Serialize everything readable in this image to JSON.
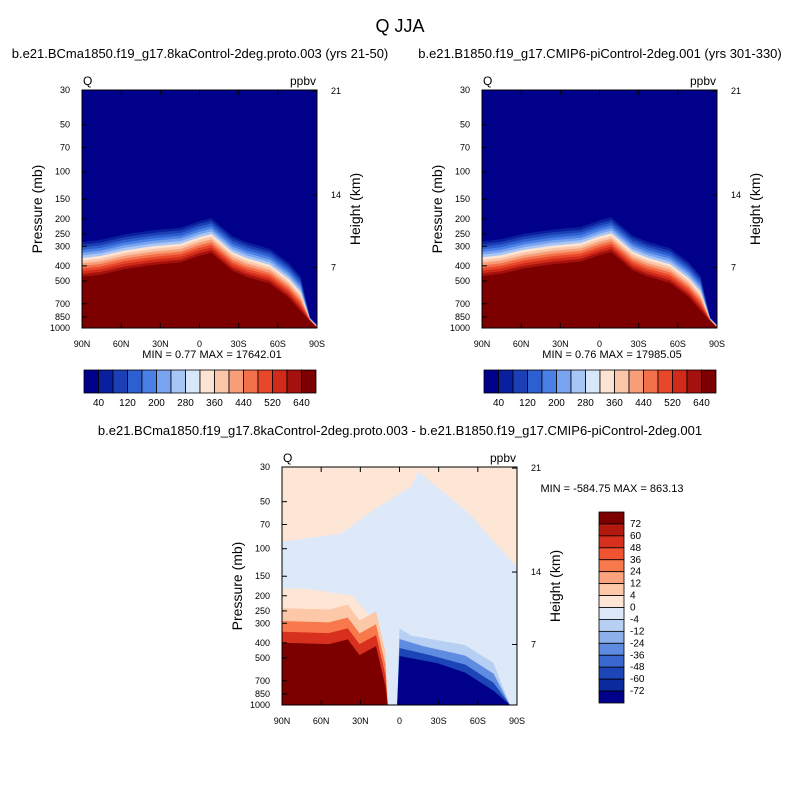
{
  "title": "Q JJA",
  "chart_data": [
    {
      "type": "heatmap",
      "subtitle": "b.e21.BCma1850.f19_g17.8kaControl-2deg.proto.003 (yrs 21-50)",
      "left_label": "Q",
      "right_label": "ppbv",
      "ylabel": "Pressure (mb)",
      "y2label": "Height (km)",
      "xticks": [
        "90N",
        "60N",
        "30N",
        "0",
        "30S",
        "60S",
        "90S"
      ],
      "yticks": [
        "30",
        "50",
        "70",
        "100",
        "150",
        "200",
        "250",
        "300",
        "400",
        "500",
        "700",
        "850",
        "1000"
      ],
      "y2ticks": [
        "21",
        "14",
        "7"
      ],
      "stats": "MIN =   0.77  MAX = 17642.01",
      "colorbar_labels": [
        "40",
        "120",
        "200",
        "280",
        "360",
        "440",
        "520",
        "640"
      ],
      "colorbar_colors": [
        "#00008b",
        "#0a1f9e",
        "#1c3fb5",
        "#2e5fd0",
        "#4a80e6",
        "#7aa3ef",
        "#a8c6f5",
        "#d8e6fa",
        "#fde3d2",
        "#fbc6a8",
        "#f79e78",
        "#f3704a",
        "#e8472a",
        "#cf2a1a",
        "#a5120d",
        "#7c0000"
      ]
    },
    {
      "type": "heatmap",
      "subtitle": "b.e21.B1850.f19_g17.CMIP6-piControl-2deg.001 (yrs 301-330)",
      "left_label": "Q",
      "right_label": "ppbv",
      "ylabel": "Pressure (mb)",
      "y2label": "Height (km)",
      "xticks": [
        "90N",
        "60N",
        "30N",
        "0",
        "30S",
        "60S",
        "90S"
      ],
      "yticks": [
        "30",
        "50",
        "70",
        "100",
        "150",
        "200",
        "250",
        "300",
        "400",
        "500",
        "700",
        "850",
        "1000"
      ],
      "y2ticks": [
        "21",
        "14",
        "7"
      ],
      "stats": "MIN =   0.76  MAX = 17985.05",
      "colorbar_labels": [
        "40",
        "120",
        "200",
        "280",
        "360",
        "440",
        "520",
        "640"
      ],
      "colorbar_colors": [
        "#00008b",
        "#0a1f9e",
        "#1c3fb5",
        "#2e5fd0",
        "#4a80e6",
        "#7aa3ef",
        "#a8c6f5",
        "#d8e6fa",
        "#fde3d2",
        "#fbc6a8",
        "#f79e78",
        "#f3704a",
        "#e8472a",
        "#cf2a1a",
        "#a5120d",
        "#7c0000"
      ]
    },
    {
      "type": "heatmap",
      "subtitle": "b.e21.BCma1850.f19_g17.8kaControl-2deg.proto.003 - b.e21.B1850.f19_g17.CMIP6-piControl-2deg.001",
      "left_label": "Q",
      "right_label": "ppbv",
      "ylabel": "Pressure (mb)",
      "y2label": "Height (km)",
      "xticks": [
        "90N",
        "60N",
        "30N",
        "0",
        "30S",
        "60S",
        "90S"
      ],
      "yticks": [
        "30",
        "50",
        "70",
        "100",
        "150",
        "200",
        "250",
        "300",
        "400",
        "500",
        "700",
        "850",
        "1000"
      ],
      "y2ticks": [
        "21",
        "14",
        "7"
      ],
      "stats": "MIN = -584.75  MAX = 863.13",
      "colorbar_labels": [
        "72",
        "60",
        "48",
        "36",
        "24",
        "12",
        "4",
        "0",
        "-4",
        "-12",
        "-24",
        "-36",
        "-48",
        "-60",
        "-72"
      ],
      "colorbar_colors": [
        "#7c0000",
        "#b31a0f",
        "#d7301f",
        "#ef5330",
        "#f7794c",
        "#fba37d",
        "#fdc8a8",
        "#fde6d6",
        "#dde9f8",
        "#b6cff2",
        "#8db0ea",
        "#5f8ce0",
        "#3a68d1",
        "#1c45b8",
        "#0a2a9e",
        "#00008b"
      ]
    }
  ]
}
